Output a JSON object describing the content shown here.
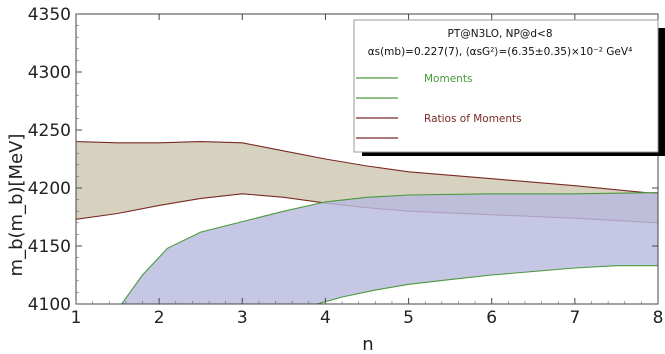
{
  "chart_data": {
    "type": "area",
    "xlabel": "n",
    "ylabel": "m_b(m_b)[MeV]",
    "xlim": [
      1,
      8
    ],
    "ylim": [
      4100,
      4350
    ],
    "x_ticks": [
      1,
      2,
      3,
      4,
      5,
      6,
      7,
      8
    ],
    "y_ticks": [
      4100,
      4150,
      4200,
      4250,
      4300,
      4350
    ],
    "grid": false,
    "legend_placement": "top-right",
    "legend_header": {
      "line1": "PT@N3LO, NP@d<8",
      "line2": "αs(mb)=0.227(7), ⟨αsG²⟩=(6.35±0.35)×10⁻² GeV⁴"
    },
    "series": [
      {
        "name": "Moments",
        "color": "#4a9a3c",
        "fill": "#b9badf",
        "upper": [
          [
            1.55,
            4100
          ],
          [
            1.8,
            4125
          ],
          [
            2.1,
            4148
          ],
          [
            2.5,
            4162
          ],
          [
            3.0,
            4171
          ],
          [
            3.5,
            4180
          ],
          [
            4.0,
            4188
          ],
          [
            4.5,
            4192
          ],
          [
            5.0,
            4194
          ],
          [
            6.0,
            4195
          ],
          [
            7.0,
            4195
          ],
          [
            8.0,
            4196
          ]
        ],
        "lower": [
          [
            3.9,
            4100
          ],
          [
            4.2,
            4106
          ],
          [
            4.6,
            4112
          ],
          [
            5.0,
            4117
          ],
          [
            5.5,
            4121
          ],
          [
            6.0,
            4125
          ],
          [
            6.5,
            4128
          ],
          [
            7.0,
            4131
          ],
          [
            7.5,
            4133
          ],
          [
            8.0,
            4133
          ]
        ]
      },
      {
        "name": "Ratios of Moments",
        "color": "#7a2a22",
        "fill": "#d6d2bf",
        "upper": [
          [
            1.0,
            4240
          ],
          [
            1.5,
            4239
          ],
          [
            2.0,
            4239
          ],
          [
            2.5,
            4240
          ],
          [
            3.0,
            4239
          ],
          [
            3.5,
            4232
          ],
          [
            4.0,
            4225
          ],
          [
            4.5,
            4219
          ],
          [
            5.0,
            4214
          ],
          [
            6.0,
            4208
          ],
          [
            7.0,
            4202
          ],
          [
            8.0,
            4195
          ]
        ],
        "lower": [
          [
            1.0,
            4173
          ],
          [
            1.5,
            4178
          ],
          [
            2.0,
            4185
          ],
          [
            2.5,
            4191
          ],
          [
            3.0,
            4195
          ],
          [
            3.5,
            4192
          ],
          [
            4.0,
            4187
          ],
          [
            4.5,
            4183
          ],
          [
            5.0,
            4180
          ],
          [
            6.0,
            4177
          ],
          [
            7.0,
            4174
          ],
          [
            8.0,
            4170
          ]
        ]
      }
    ]
  }
}
